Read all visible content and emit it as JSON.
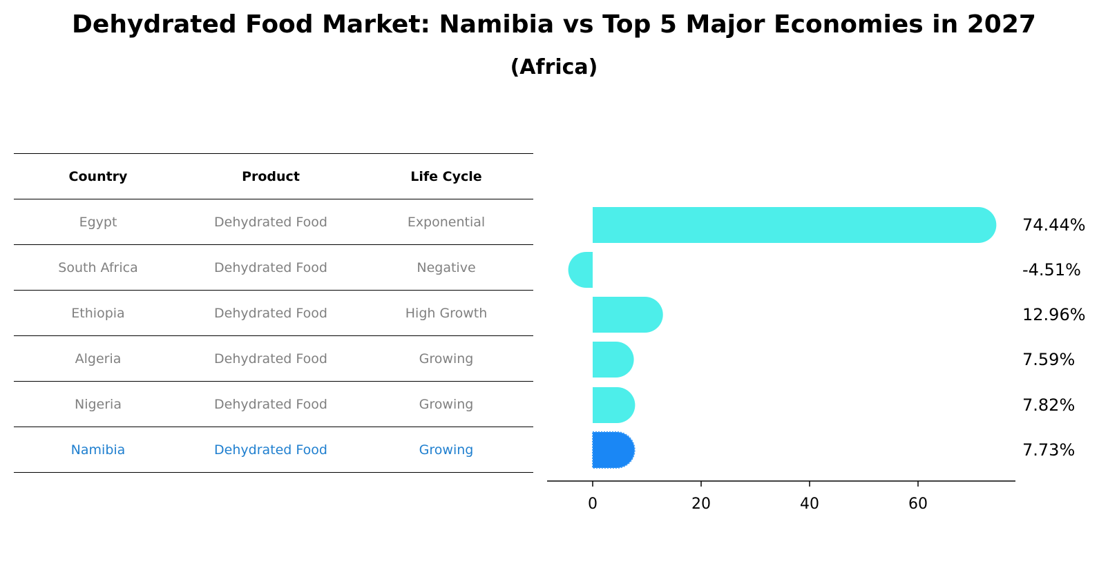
{
  "title": "Dehydrated Food Market: Namibia vs Top 5 Major Economies in 2027",
  "subtitle": "(Africa)",
  "table": {
    "headers": [
      "Country",
      "Product",
      "Life Cycle"
    ],
    "rows": [
      {
        "country": "Egypt",
        "product": "Dehydrated Food",
        "life_cycle": "Exponential"
      },
      {
        "country": "South Africa",
        "product": "Dehydrated Food",
        "life_cycle": "Negative"
      },
      {
        "country": "Ethiopia",
        "product": "Dehydrated Food",
        "life_cycle": "High Growth"
      },
      {
        "country": "Algeria",
        "product": "Dehydrated Food",
        "life_cycle": "Growing"
      },
      {
        "country": "Nigeria",
        "product": "Dehydrated Food",
        "life_cycle": "Growing"
      },
      {
        "country": "Namibia",
        "product": "Dehydrated Food",
        "life_cycle": "Growing"
      }
    ]
  },
  "chart_data": {
    "type": "bar",
    "orientation": "horizontal",
    "categories": [
      "Egypt",
      "South Africa",
      "Ethiopia",
      "Algeria",
      "Nigeria",
      "Namibia"
    ],
    "values": [
      74.44,
      -4.51,
      12.96,
      7.59,
      7.82,
      7.73
    ],
    "value_labels": [
      "74.44%",
      "-4.51%",
      "12.96%",
      "7.59%",
      "7.82%",
      "7.73%"
    ],
    "highlight": "Namibia",
    "x_ticks": [
      0,
      20,
      40,
      60
    ],
    "x_tick_labels": [
      "0",
      "20",
      "40",
      "60"
    ],
    "xlim": [
      -8.5,
      78
    ],
    "xlabel": "",
    "ylabel": "",
    "colors": {
      "bar": "#4deeea",
      "highlight": "#1a87f5",
      "highlight_text": "#1f7fcf",
      "muted_text": "#808080"
    }
  }
}
